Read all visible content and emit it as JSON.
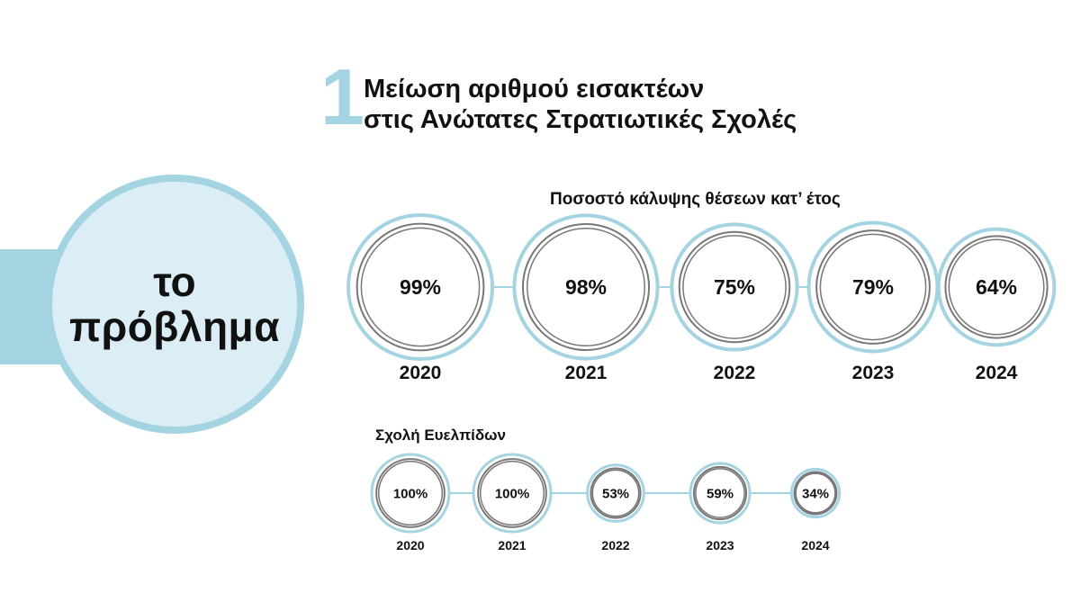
{
  "hero": {
    "line1": "το",
    "line2": "πρόβλημα"
  },
  "section": {
    "number": "1",
    "title_line1": "Μείωση αριθμού εισακτέων",
    "title_line2": "στις Ανώτατες Στρατιωτικές Σχολές"
  },
  "colors": {
    "accent": "#a4d4e2",
    "accent_light": "#dceef5",
    "ring": "#777777",
    "text": "#111111"
  },
  "chart_data": [
    {
      "type": "bubble",
      "title": "Ποσοστό κάλυψης θέσεων κατ’ έτος",
      "categories": [
        "2020",
        "2021",
        "2022",
        "2023",
        "2024"
      ],
      "values": [
        99,
        98,
        75,
        79,
        64
      ],
      "labels": [
        "99%",
        "98%",
        "75%",
        "79%",
        "64%"
      ]
    },
    {
      "type": "bubble",
      "title": "Σχολή Ευελπίδων",
      "categories": [
        "2020",
        "2021",
        "2022",
        "2023",
        "2024"
      ],
      "values": [
        100,
        100,
        53,
        59,
        34
      ],
      "labels": [
        "100%",
        "100%",
        "53%",
        "59%",
        "34%"
      ]
    }
  ]
}
